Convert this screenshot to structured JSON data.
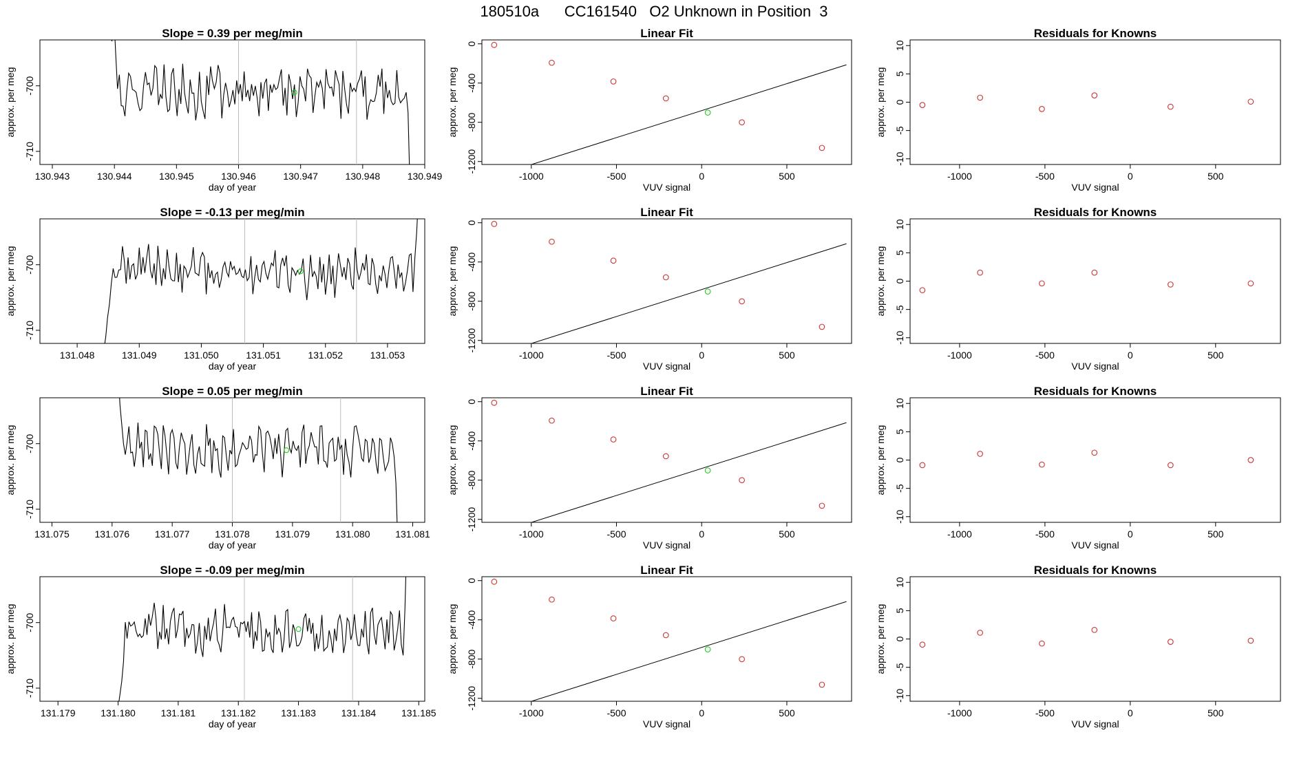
{
  "figure": {
    "title": "180510a      CC161540   O2 Unknown in Position  3"
  },
  "chart_data": [
    {
      "type": "line",
      "panel": "timeseries",
      "row": 1,
      "title": "Slope =  0.39  per meg/min",
      "xlabel": "day of year",
      "ylabel": "approx. per meg",
      "xlim": [
        130.9428,
        130.949
      ],
      "ylim": [
        -712,
        -693
      ],
      "xticks": [
        "130.943",
        "130.944",
        "130.945",
        "130.946",
        "130.947",
        "130.948",
        "130.949"
      ],
      "yticks": [
        "-700",
        "-710"
      ],
      "vlines": [
        130.946,
        130.9479
      ],
      "series_start": 130.9439,
      "series_end": 130.94875,
      "series_step": 3e-05,
      "seed": 1,
      "trend": 0.25,
      "head": [
        -686,
        -692,
        -693.2,
        -689,
        -695
      ],
      "tail": [
        -701,
        -704,
        -715
      ],
      "unknown_point": {
        "x": 130.9469,
        "y": -701
      },
      "colors": {
        "line": "#000000",
        "unknown": "#22cc22",
        "vline": "#bbbbbb"
      }
    },
    {
      "type": "scatter",
      "panel": "linear_fit",
      "row": 1,
      "title": "Linear Fit",
      "xlabel": "VUV signal",
      "ylabel": "approx. per meg",
      "xlim": [
        -1290,
        880
      ],
      "ylim": [
        -1230,
        40
      ],
      "xticks": [
        "-1000",
        "-500",
        "0",
        "500"
      ],
      "yticks": [
        "0",
        "-400",
        "-800",
        "-1200"
      ],
      "knowns": [
        {
          "x": -1218,
          "y": -11
        },
        {
          "x": -880,
          "y": -193
        },
        {
          "x": -518,
          "y": -384
        },
        {
          "x": -210,
          "y": -556
        },
        {
          "x": 236,
          "y": -800
        },
        {
          "x": 706,
          "y": -1061
        }
      ],
      "unknown": {
        "x": 36,
        "y": -701
      },
      "fit": {
        "slope": 0.55,
        "intercept": -681
      },
      "colors": {
        "known": "#cc3333",
        "unknown": "#22cc22",
        "fit": "#000000"
      }
    },
    {
      "type": "scatter",
      "panel": "residuals",
      "row": 1,
      "title": "Residuals for Knowns",
      "xlabel": "VUV signal",
      "ylabel": "approx. per meg",
      "xlim": [
        -1290,
        880
      ],
      "ylim": [
        -11,
        11
      ],
      "xticks": [
        "-1000",
        "-500",
        "0",
        "500"
      ],
      "yticks": [
        "10",
        "5",
        "0",
        "-5",
        "-10"
      ],
      "points": [
        {
          "x": -1218,
          "y": -0.5
        },
        {
          "x": -880,
          "y": 0.8
        },
        {
          "x": -518,
          "y": -1.2
        },
        {
          "x": -210,
          "y": 1.2
        },
        {
          "x": 236,
          "y": -0.8
        },
        {
          "x": 706,
          "y": 0.1
        }
      ],
      "colors": {
        "point": "#cc3333"
      }
    },
    {
      "type": "line",
      "panel": "timeseries",
      "row": 2,
      "title": "Slope =  -0.13  per meg/min",
      "xlabel": "day of year",
      "ylabel": "approx. per meg",
      "xlim": [
        131.0474,
        131.0536
      ],
      "ylim": [
        -712,
        -693
      ],
      "xticks": [
        "131.048",
        "131.049",
        "131.050",
        "131.051",
        "131.052",
        "131.053"
      ],
      "yticks": [
        "-700",
        "-710"
      ],
      "vlines": [
        131.0507,
        131.0525
      ],
      "series_start": 131.0484,
      "series_end": 131.0535,
      "series_step": 3e-05,
      "seed": 2,
      "trend": -0.15,
      "head": [
        -712,
        -713,
        -711,
        -708,
        -706
      ],
      "tail": [
        -699,
        -695,
        -689
      ],
      "unknown_point": {
        "x": 131.0516,
        "y": -701
      },
      "colors": {
        "line": "#000000",
        "unknown": "#22cc22",
        "vline": "#bbbbbb"
      }
    },
    {
      "type": "scatter",
      "panel": "linear_fit",
      "row": 2,
      "title": "Linear Fit",
      "xlabel": "VUV signal",
      "ylabel": "approx. per meg",
      "xlim": [
        -1290,
        880
      ],
      "ylim": [
        -1230,
        40
      ],
      "xticks": [
        "-1000",
        "-500",
        "0",
        "500"
      ],
      "yticks": [
        "0",
        "-400",
        "-800",
        "-1200"
      ],
      "knowns": [
        {
          "x": -1218,
          "y": -12
        },
        {
          "x": -880,
          "y": -193
        },
        {
          "x": -518,
          "y": -386
        },
        {
          "x": -210,
          "y": -556
        },
        {
          "x": 236,
          "y": -801
        },
        {
          "x": 706,
          "y": -1061
        }
      ],
      "unknown": {
        "x": 36,
        "y": -701
      },
      "fit": {
        "slope": 0.55,
        "intercept": -681
      },
      "colors": {
        "known": "#cc3333",
        "unknown": "#22cc22",
        "fit": "#000000"
      }
    },
    {
      "type": "scatter",
      "panel": "residuals",
      "row": 2,
      "title": "Residuals for Knowns",
      "xlabel": "VUV signal",
      "ylabel": "approx. per meg",
      "xlim": [
        -1290,
        880
      ],
      "ylim": [
        -11,
        11
      ],
      "xticks": [
        "-1000",
        "-500",
        "0",
        "500"
      ],
      "yticks": [
        "10",
        "5",
        "0",
        "-5",
        "-10"
      ],
      "points": [
        {
          "x": -1218,
          "y": -1.6
        },
        {
          "x": -880,
          "y": 1.5
        },
        {
          "x": -518,
          "y": -0.4
        },
        {
          "x": -210,
          "y": 1.5
        },
        {
          "x": 236,
          "y": -0.6
        },
        {
          "x": 706,
          "y": -0.4
        }
      ],
      "colors": {
        "point": "#cc3333"
      }
    },
    {
      "type": "line",
      "panel": "timeseries",
      "row": 3,
      "title": "Slope =  0.05  per meg/min",
      "xlabel": "day of year",
      "ylabel": "approx. per meg",
      "xlim": [
        131.0748,
        131.0812
      ],
      "ylim": [
        -712,
        -693
      ],
      "xticks": [
        "131.075",
        "131.076",
        "131.077",
        "131.078",
        "131.079",
        "131.080",
        "131.081"
      ],
      "yticks": [
        "-700",
        "-710"
      ],
      "vlines": [
        131.078,
        131.0798
      ],
      "series_start": 131.0761,
      "series_end": 131.08075,
      "series_step": 3e-05,
      "seed": 3,
      "trend": 0.05,
      "head": [
        -688,
        -694,
        -697,
        -700
      ],
      "tail": [
        -702,
        -706,
        -715
      ],
      "unknown_point": {
        "x": 131.0789,
        "y": -701
      },
      "colors": {
        "line": "#000000",
        "unknown": "#22cc22",
        "vline": "#bbbbbb"
      }
    },
    {
      "type": "scatter",
      "panel": "linear_fit",
      "row": 3,
      "title": "Linear Fit",
      "xlabel": "VUV signal",
      "ylabel": "approx. per meg",
      "xlim": [
        -1290,
        880
      ],
      "ylim": [
        -1230,
        40
      ],
      "xticks": [
        "-1000",
        "-500",
        "0",
        "500"
      ],
      "yticks": [
        "0",
        "-400",
        "-800",
        "-1200"
      ],
      "knowns": [
        {
          "x": -1218,
          "y": -11
        },
        {
          "x": -880,
          "y": -193
        },
        {
          "x": -518,
          "y": -385
        },
        {
          "x": -210,
          "y": -556
        },
        {
          "x": 236,
          "y": -800
        },
        {
          "x": 706,
          "y": -1061
        }
      ],
      "unknown": {
        "x": 36,
        "y": -701
      },
      "fit": {
        "slope": 0.55,
        "intercept": -681
      },
      "colors": {
        "known": "#cc3333",
        "unknown": "#22cc22",
        "fit": "#000000"
      }
    },
    {
      "type": "scatter",
      "panel": "residuals",
      "row": 3,
      "title": "Residuals for Knowns",
      "xlabel": "VUV signal",
      "ylabel": "approx. per meg",
      "xlim": [
        -1290,
        880
      ],
      "ylim": [
        -11,
        11
      ],
      "xticks": [
        "-1000",
        "-500",
        "0",
        "500"
      ],
      "yticks": [
        "10",
        "5",
        "0",
        "-5",
        "-10"
      ],
      "points": [
        {
          "x": -1218,
          "y": -0.9
        },
        {
          "x": -880,
          "y": 1.1
        },
        {
          "x": -518,
          "y": -0.8
        },
        {
          "x": -210,
          "y": 1.3
        },
        {
          "x": 236,
          "y": -0.9
        },
        {
          "x": 706,
          "y": 0.0
        }
      ],
      "colors": {
        "point": "#cc3333"
      }
    },
    {
      "type": "line",
      "panel": "timeseries",
      "row": 4,
      "title": "Slope =  -0.09  per meg/min",
      "xlabel": "day of year",
      "ylabel": "approx. per meg",
      "xlim": [
        131.1787,
        131.1851
      ],
      "ylim": [
        -712,
        -693
      ],
      "xticks": [
        "131.179",
        "131.180",
        "131.181",
        "131.182",
        "131.183",
        "131.184",
        "131.185"
      ],
      "yticks": [
        "-700",
        "-710"
      ],
      "vlines": [
        131.1821,
        131.1839
      ],
      "series_start": 131.18,
      "series_end": 131.1848,
      "series_step": 3e-05,
      "seed": 4,
      "trend": -0.1,
      "head": [
        -713,
        -711,
        -709,
        -706
      ],
      "tail": [
        -705,
        -698,
        -688
      ],
      "unknown_point": {
        "x": 131.183,
        "y": -701
      },
      "colors": {
        "line": "#000000",
        "unknown": "#22cc22",
        "vline": "#bbbbbb"
      }
    },
    {
      "type": "scatter",
      "panel": "linear_fit",
      "row": 4,
      "title": "Linear Fit",
      "xlabel": "VUV signal",
      "ylabel": "approx. per meg",
      "xlim": [
        -1290,
        880
      ],
      "ylim": [
        -1230,
        40
      ],
      "xticks": [
        "-1000",
        "-500",
        "0",
        "500"
      ],
      "yticks": [
        "0",
        "-400",
        "-800",
        "-1200"
      ],
      "knowns": [
        {
          "x": -1218,
          "y": -11
        },
        {
          "x": -880,
          "y": -193
        },
        {
          "x": -518,
          "y": -385
        },
        {
          "x": -210,
          "y": -556
        },
        {
          "x": 236,
          "y": -801
        },
        {
          "x": 706,
          "y": -1061
        }
      ],
      "unknown": {
        "x": 36,
        "y": -701
      },
      "fit": {
        "slope": 0.55,
        "intercept": -681
      },
      "colors": {
        "known": "#cc3333",
        "unknown": "#22cc22",
        "fit": "#000000"
      }
    },
    {
      "type": "scatter",
      "panel": "residuals",
      "row": 4,
      "title": "Residuals for Knowns",
      "xlabel": "VUV signal",
      "ylabel": "approx. per meg",
      "xlim": [
        -1290,
        880
      ],
      "ylim": [
        -11,
        11
      ],
      "xticks": [
        "-1000",
        "-500",
        "0",
        "500"
      ],
      "yticks": [
        "10",
        "5",
        "0",
        "-5",
        "-10"
      ],
      "points": [
        {
          "x": -1218,
          "y": -1.0
        },
        {
          "x": -880,
          "y": 1.1
        },
        {
          "x": -518,
          "y": -0.8
        },
        {
          "x": -210,
          "y": 1.6
        },
        {
          "x": 236,
          "y": -0.5
        },
        {
          "x": 706,
          "y": -0.3
        }
      ],
      "colors": {
        "point": "#cc3333"
      }
    }
  ]
}
